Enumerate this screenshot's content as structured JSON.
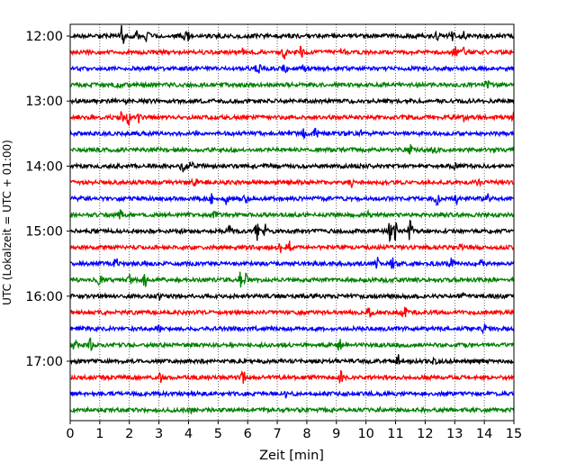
{
  "chart_data": {
    "type": "line",
    "title": "",
    "xlabel": "Zeit  [min]",
    "ylabel": "UTC (Lokalzeit = UTC + 01:00)",
    "xlim": [
      0,
      15
    ],
    "x_ticks": [
      0,
      1,
      2,
      3,
      4,
      5,
      6,
      7,
      8,
      9,
      10,
      11,
      12,
      13,
      14,
      15
    ],
    "x_tick_labels": [
      "0",
      "1",
      "2",
      "3",
      "4",
      "5",
      "6",
      "7",
      "8",
      "9",
      "10",
      "11",
      "12",
      "13",
      "14",
      "15"
    ],
    "y_tick_labels": [
      "12:00",
      "13:00",
      "14:00",
      "15:00",
      "16:00",
      "17:00"
    ],
    "y_tick_rows": [
      0,
      4,
      8,
      12,
      16,
      20
    ],
    "grid": "vertical-dotted",
    "trace_colors": [
      "#000000",
      "#ff0000",
      "#0000ff",
      "#008000"
    ],
    "traces": [
      {
        "start": "12:00",
        "color": "#000000"
      },
      {
        "start": "12:15",
        "color": "#ff0000"
      },
      {
        "start": "12:30",
        "color": "#0000ff"
      },
      {
        "start": "12:45",
        "color": "#008000"
      },
      {
        "start": "13:00",
        "color": "#000000"
      },
      {
        "start": "13:15",
        "color": "#ff0000"
      },
      {
        "start": "13:30",
        "color": "#0000ff"
      },
      {
        "start": "13:45",
        "color": "#008000"
      },
      {
        "start": "14:00",
        "color": "#000000"
      },
      {
        "start": "14:15",
        "color": "#ff0000"
      },
      {
        "start": "14:30",
        "color": "#0000ff"
      },
      {
        "start": "14:45",
        "color": "#008000"
      },
      {
        "start": "15:00",
        "color": "#000000"
      },
      {
        "start": "15:15",
        "color": "#ff0000"
      },
      {
        "start": "15:30",
        "color": "#0000ff"
      },
      {
        "start": "15:45",
        "color": "#008000"
      },
      {
        "start": "16:00",
        "color": "#000000"
      },
      {
        "start": "16:15",
        "color": "#ff0000"
      },
      {
        "start": "16:30",
        "color": "#0000ff"
      },
      {
        "start": "16:45",
        "color": "#008000"
      },
      {
        "start": "17:00",
        "color": "#000000"
      },
      {
        "start": "17:15",
        "color": "#ff0000"
      },
      {
        "start": "17:30",
        "color": "#0000ff"
      },
      {
        "start": "17:45",
        "color": "#008000"
      }
    ],
    "events": [
      {
        "row": 0,
        "min": 1.75,
        "amp": 0.9
      },
      {
        "row": 0,
        "min": 2.3,
        "amp": 0.6
      },
      {
        "row": 0,
        "min": 2.6,
        "amp": 0.5
      },
      {
        "row": 0,
        "min": 3.9,
        "amp": 0.3
      },
      {
        "row": 0,
        "min": 4.0,
        "amp": 0.35
      },
      {
        "row": 0,
        "min": 12.4,
        "amp": 0.3
      },
      {
        "row": 0,
        "min": 12.9,
        "amp": 0.45
      },
      {
        "row": 0,
        "min": 13.3,
        "amp": 0.4
      },
      {
        "row": 1,
        "min": 5.8,
        "amp": 0.3
      },
      {
        "row": 1,
        "min": 7.25,
        "amp": 0.55
      },
      {
        "row": 1,
        "min": 7.8,
        "amp": 0.45
      },
      {
        "row": 1,
        "min": 9.2,
        "amp": 0.55
      },
      {
        "row": 1,
        "min": 13.0,
        "amp": 0.55
      },
      {
        "row": 1,
        "min": 13.3,
        "amp": 0.4
      },
      {
        "row": 2,
        "min": 6.35,
        "amp": 0.7
      },
      {
        "row": 2,
        "min": 7.25,
        "amp": 0.3
      },
      {
        "row": 2,
        "min": 7.9,
        "amp": 0.25
      },
      {
        "row": 3,
        "min": 1.6,
        "amp": 0.3
      },
      {
        "row": 3,
        "min": 14.1,
        "amp": 0.55
      },
      {
        "row": 4,
        "min": 1.9,
        "amp": 0.3
      },
      {
        "row": 5,
        "min": 1.7,
        "amp": 0.5
      },
      {
        "row": 5,
        "min": 1.95,
        "amp": 0.9
      },
      {
        "row": 5,
        "min": 2.3,
        "amp": 0.4
      },
      {
        "row": 5,
        "min": 13.3,
        "amp": 0.4
      },
      {
        "row": 5,
        "min": 15.0,
        "amp": 0.45
      },
      {
        "row": 6,
        "min": 7.9,
        "amp": 0.35
      },
      {
        "row": 6,
        "min": 8.3,
        "amp": 0.35
      },
      {
        "row": 6,
        "min": 9.8,
        "amp": 0.3
      },
      {
        "row": 7,
        "min": 11.5,
        "amp": 0.35
      },
      {
        "row": 7,
        "min": 12.3,
        "amp": 0.25
      },
      {
        "row": 8,
        "min": 3.8,
        "amp": 0.4
      },
      {
        "row": 8,
        "min": 4.1,
        "amp": 0.35
      },
      {
        "row": 8,
        "min": 13.0,
        "amp": 0.35
      },
      {
        "row": 9,
        "min": 4.2,
        "amp": 0.45
      },
      {
        "row": 9,
        "min": 9.5,
        "amp": 0.35
      },
      {
        "row": 9,
        "min": 13.8,
        "amp": 0.3
      },
      {
        "row": 10,
        "min": 4.75,
        "amp": 0.55
      },
      {
        "row": 10,
        "min": 5.3,
        "amp": 0.5
      },
      {
        "row": 10,
        "min": 5.9,
        "amp": 0.4
      },
      {
        "row": 10,
        "min": 12.4,
        "amp": 0.55
      },
      {
        "row": 10,
        "min": 13.1,
        "amp": 0.45
      },
      {
        "row": 10,
        "min": 14.1,
        "amp": 0.35
      },
      {
        "row": 11,
        "min": 1.7,
        "amp": 0.35
      },
      {
        "row": 11,
        "min": 4.9,
        "amp": 0.3
      },
      {
        "row": 11,
        "min": 10.1,
        "amp": 0.3
      },
      {
        "row": 12,
        "min": 5.4,
        "amp": 0.4
      },
      {
        "row": 12,
        "min": 6.3,
        "amp": 0.8
      },
      {
        "row": 12,
        "min": 6.6,
        "amp": 0.5
      },
      {
        "row": 12,
        "min": 10.8,
        "amp": 0.85
      },
      {
        "row": 12,
        "min": 11.0,
        "amp": 0.7
      },
      {
        "row": 12,
        "min": 11.5,
        "amp": 0.9
      },
      {
        "row": 13,
        "min": 7.1,
        "amp": 0.4
      },
      {
        "row": 13,
        "min": 7.4,
        "amp": 0.65
      },
      {
        "row": 13,
        "min": 13.2,
        "amp": 0.3
      },
      {
        "row": 14,
        "min": 1.55,
        "amp": 0.6
      },
      {
        "row": 14,
        "min": 10.4,
        "amp": 0.6
      },
      {
        "row": 14,
        "min": 10.9,
        "amp": 0.4
      },
      {
        "row": 14,
        "min": 12.9,
        "amp": 0.4
      },
      {
        "row": 14,
        "min": 13.9,
        "amp": 0.55
      },
      {
        "row": 15,
        "min": 1.0,
        "amp": 0.35
      },
      {
        "row": 15,
        "min": 2.0,
        "amp": 0.55
      },
      {
        "row": 15,
        "min": 2.55,
        "amp": 0.8
      },
      {
        "row": 15,
        "min": 5.75,
        "amp": 0.6
      },
      {
        "row": 15,
        "min": 5.95,
        "amp": 0.5
      },
      {
        "row": 15,
        "min": 10.7,
        "amp": 0.3
      },
      {
        "row": 16,
        "min": 3.0,
        "amp": 0.25
      },
      {
        "row": 16,
        "min": 13.3,
        "amp": 0.3
      },
      {
        "row": 17,
        "min": 10.1,
        "amp": 0.4
      },
      {
        "row": 17,
        "min": 11.3,
        "amp": 0.5
      },
      {
        "row": 18,
        "min": 3.0,
        "amp": 0.3
      },
      {
        "row": 18,
        "min": 14.0,
        "amp": 0.4
      },
      {
        "row": 19,
        "min": 0.15,
        "amp": 0.4
      },
      {
        "row": 19,
        "min": 0.7,
        "amp": 0.55
      },
      {
        "row": 19,
        "min": 9.1,
        "amp": 0.45
      },
      {
        "row": 20,
        "min": 11.1,
        "amp": 0.5
      },
      {
        "row": 20,
        "min": 12.3,
        "amp": 0.25
      },
      {
        "row": 21,
        "min": 3.05,
        "amp": 0.5
      },
      {
        "row": 21,
        "min": 5.85,
        "amp": 0.5
      },
      {
        "row": 21,
        "min": 9.15,
        "amp": 0.5
      },
      {
        "row": 22,
        "min": 7.3,
        "amp": 0.2
      },
      {
        "row": 23,
        "min": 4.1,
        "amp": 0.25
      },
      {
        "row": 23,
        "min": 10.5,
        "amp": 0.2
      }
    ]
  }
}
